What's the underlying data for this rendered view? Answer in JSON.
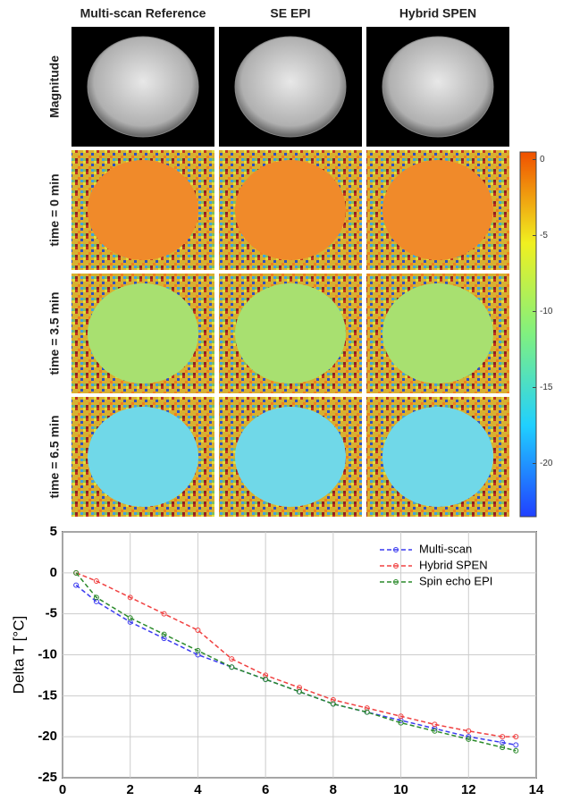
{
  "figure": {
    "columns": [
      "Multi-scan Reference",
      "SE EPI",
      "Hybrid SPEN"
    ],
    "rows": [
      "Magnitude",
      "time = 0 min",
      "time = 3.5 min",
      "time = 6.5 min"
    ],
    "colorbar": {
      "clim": [
        -23.5,
        0.5
      ],
      "ticks": [
        0,
        -5,
        -10,
        -15,
        -20
      ]
    }
  },
  "chart_data": {
    "type": "line",
    "ylabel": "Delta T [°C]",
    "x": [
      0.4,
      1,
      2,
      3,
      4,
      5,
      6,
      7,
      8,
      9,
      10,
      11,
      12,
      13,
      13.4
    ],
    "series": [
      {
        "name": "Multi-scan",
        "color": "#3a3af0",
        "values": [
          -1.5,
          -3.5,
          -6,
          -8,
          -10,
          -11.5,
          -13,
          -14.5,
          -16,
          -17,
          -18,
          -19,
          -20,
          -20.7,
          -21
        ]
      },
      {
        "name": "Hybrid SPEN",
        "color": "#f04040",
        "values": [
          0,
          -1,
          -3,
          -5,
          -7,
          -10.5,
          -12.5,
          -14,
          -15.5,
          -16.5,
          -17.5,
          -18.5,
          -19.3,
          -20,
          -20
        ]
      },
      {
        "name": "Spin echo EPI",
        "color": "#2a8a2a",
        "values": [
          0,
          -3,
          -5.5,
          -7.5,
          -9.5,
          -11.5,
          -13,
          -14.5,
          -16,
          -17,
          -18.3,
          -19.3,
          -20.3,
          -21.3,
          -21.7
        ]
      }
    ],
    "xlim": [
      0,
      14
    ],
    "ylim": [
      -25,
      5
    ],
    "xticks": [
      0,
      2,
      4,
      6,
      8,
      10,
      12,
      14
    ],
    "yticks": [
      -25,
      -20,
      -15,
      -10,
      -5,
      0,
      5
    ],
    "grid": true,
    "legend": "upper right"
  }
}
